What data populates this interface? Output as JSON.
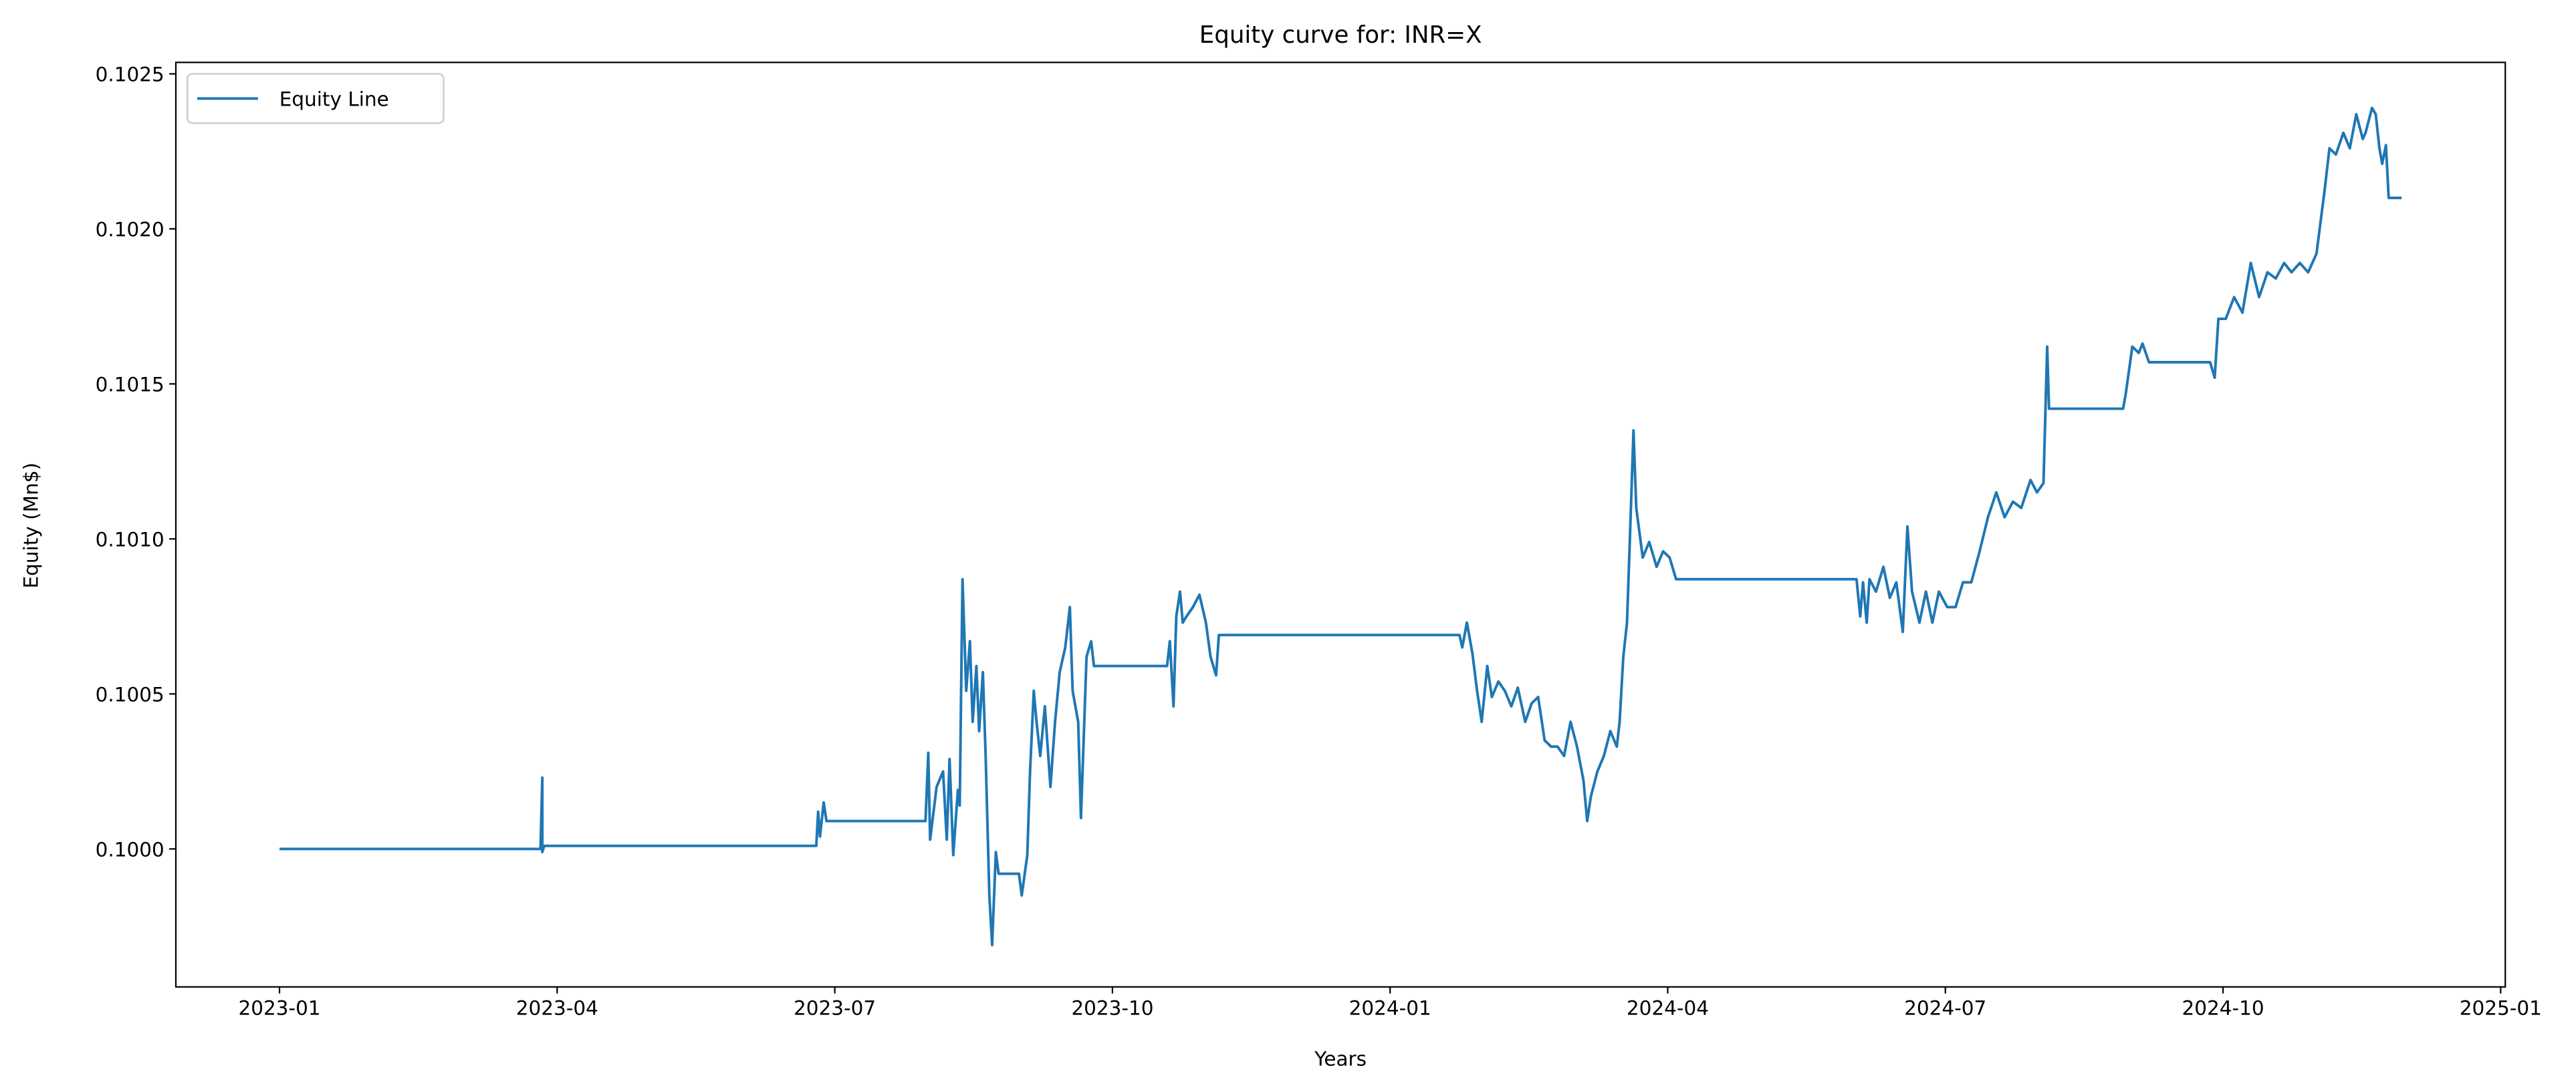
{
  "chart_data": {
    "type": "line",
    "title": "Equity curve for: INR=X",
    "x_label": "Years",
    "y_label": "Equity (Mn$)",
    "legend": "upper left",
    "xlim": [
      -1.12,
      24.05
    ],
    "xticks": [
      {
        "value": 0,
        "label": "2023-01"
      },
      {
        "value": 3,
        "label": "2023-04"
      },
      {
        "value": 6,
        "label": "2023-07"
      },
      {
        "value": 9,
        "label": "2023-10"
      },
      {
        "value": 12,
        "label": "2024-01"
      },
      {
        "value": 15,
        "label": "2024-04"
      },
      {
        "value": 18,
        "label": "2024-07"
      },
      {
        "value": 21,
        "label": "2024-10"
      },
      {
        "value": 24,
        "label": "2025-01"
      }
    ],
    "ylim": [
      0.099555,
      0.102537
    ],
    "yticks": [
      {
        "value": 0.1,
        "label": "0.1000"
      },
      0.1005,
      {
        "value": 0.101,
        "label": "0.1010"
      },
      0.1015,
      {
        "value": 0.102,
        "label": "0.1020"
      },
      0.1025
    ],
    "x": [
      0,
      2.82,
      2.84,
      2.84,
      2.86,
      5.8,
      5.82,
      5.84,
      5.88,
      5.91,
      6.98,
      7.01,
      7.03,
      7.1,
      7.17,
      7.21,
      7.24,
      7.28,
      7.33,
      7.35,
      7.38,
      7.42,
      7.46,
      7.49,
      7.53,
      7.56,
      7.6,
      7.63,
      7.67,
      7.7,
      7.74,
      7.77,
      7.99,
      8.02,
      8.08,
      8.11,
      8.15,
      8.18,
      8.22,
      8.27,
      8.33,
      8.38,
      8.43,
      8.49,
      8.54,
      8.57,
      8.63,
      8.66,
      8.72,
      8.77,
      8.8,
      9.59,
      9.62,
      9.66,
      9.69,
      9.73,
      9.76,
      9.8,
      9.87,
      9.94,
      10.01,
      10.06,
      10.12,
      10.15,
      12.75,
      12.78,
      12.83,
      12.89,
      12.94,
      12.99,
      13.05,
      13.1,
      13.17,
      13.24,
      13.31,
      13.38,
      13.46,
      13.53,
      13.6,
      13.67,
      13.74,
      13.81,
      13.88,
      13.95,
      14.02,
      14.09,
      14.13,
      14.17,
      14.24,
      14.31,
      14.38,
      14.45,
      14.48,
      14.52,
      14.56,
      14.59,
      14.63,
      14.66,
      14.73,
      14.8,
      14.88,
      14.95,
      15.02,
      15.09,
      17.04,
      17.08,
      17.11,
      17.15,
      17.18,
      17.25,
      17.33,
      17.4,
      17.47,
      17.54,
      17.59,
      17.64,
      17.72,
      17.79,
      17.86,
      17.93,
      18.02,
      18.11,
      18.19,
      18.28,
      18.37,
      18.46,
      18.55,
      18.64,
      18.73,
      18.82,
      18.92,
      18.99,
      19.06,
      19.1,
      19.12,
      19.92,
      19.95,
      20.02,
      20.09,
      20.13,
      20.2,
      20.86,
      20.91,
      20.95,
      21.03,
      21.12,
      21.21,
      21.3,
      21.39,
      21.48,
      21.57,
      21.66,
      21.74,
      21.83,
      21.92,
      22.01,
      22.1,
      22.15,
      22.22,
      22.3,
      22.37,
      22.44,
      22.51,
      22.54,
      22.61,
      22.65,
      22.69,
      22.72,
      22.76,
      22.79,
      22.93
    ],
    "series": [
      {
        "name": "Equity Line",
        "color": "#1f77b4",
        "values": [
          0.1,
          0.1,
          0.10023,
          0.09999,
          0.10001,
          0.10001,
          0.10012,
          0.10004,
          0.10015,
          0.10009,
          0.10009,
          0.10031,
          0.10003,
          0.1002,
          0.10025,
          0.10003,
          0.10029,
          0.09998,
          0.10019,
          0.10014,
          0.10087,
          0.10051,
          0.10067,
          0.10041,
          0.10059,
          0.10038,
          0.10057,
          0.1003,
          0.09985,
          0.09969,
          0.09999,
          0.09992,
          0.09992,
          0.09985,
          0.09998,
          0.10025,
          0.10051,
          0.10041,
          0.1003,
          0.10046,
          0.1002,
          0.10041,
          0.10057,
          0.10065,
          0.10078,
          0.10051,
          0.10041,
          0.1001,
          0.10062,
          0.10067,
          0.10059,
          0.10059,
          0.10067,
          0.10046,
          0.10075,
          0.10083,
          0.10073,
          0.10075,
          0.10078,
          0.10082,
          0.10073,
          0.10062,
          0.10056,
          0.10069,
          0.10069,
          0.10065,
          0.10073,
          0.10063,
          0.10051,
          0.10041,
          0.10059,
          0.10049,
          0.10054,
          0.10051,
          0.10046,
          0.10052,
          0.10041,
          0.10047,
          0.10049,
          0.10035,
          0.10033,
          0.10033,
          0.1003,
          0.10041,
          0.10033,
          0.10022,
          0.10009,
          0.10017,
          0.10025,
          0.1003,
          0.10038,
          0.10033,
          0.10041,
          0.10062,
          0.10073,
          0.10099,
          0.10135,
          0.1011,
          0.10094,
          0.10099,
          0.10091,
          0.10096,
          0.10094,
          0.10087,
          0.10087,
          0.10075,
          0.10086,
          0.10073,
          0.10087,
          0.10083,
          0.10091,
          0.10081,
          0.10086,
          0.1007,
          0.10104,
          0.10083,
          0.10073,
          0.10083,
          0.10073,
          0.10083,
          0.10078,
          0.10078,
          0.10086,
          0.10086,
          0.10096,
          0.10107,
          0.10115,
          0.10107,
          0.10112,
          0.1011,
          0.10119,
          0.10115,
          0.10118,
          0.10162,
          0.10142,
          0.10142,
          0.10147,
          0.10162,
          0.1016,
          0.10163,
          0.10157,
          0.10157,
          0.10152,
          0.10171,
          0.10171,
          0.10178,
          0.10173,
          0.10189,
          0.10178,
          0.10186,
          0.10184,
          0.10189,
          0.10186,
          0.10189,
          0.10186,
          0.10192,
          0.10213,
          0.10226,
          0.10224,
          0.10231,
          0.10226,
          0.10237,
          0.10229,
          0.10231,
          0.10239,
          0.10237,
          0.10226,
          0.10221,
          0.10227,
          0.1021,
          0.1021
        ]
      }
    ]
  }
}
